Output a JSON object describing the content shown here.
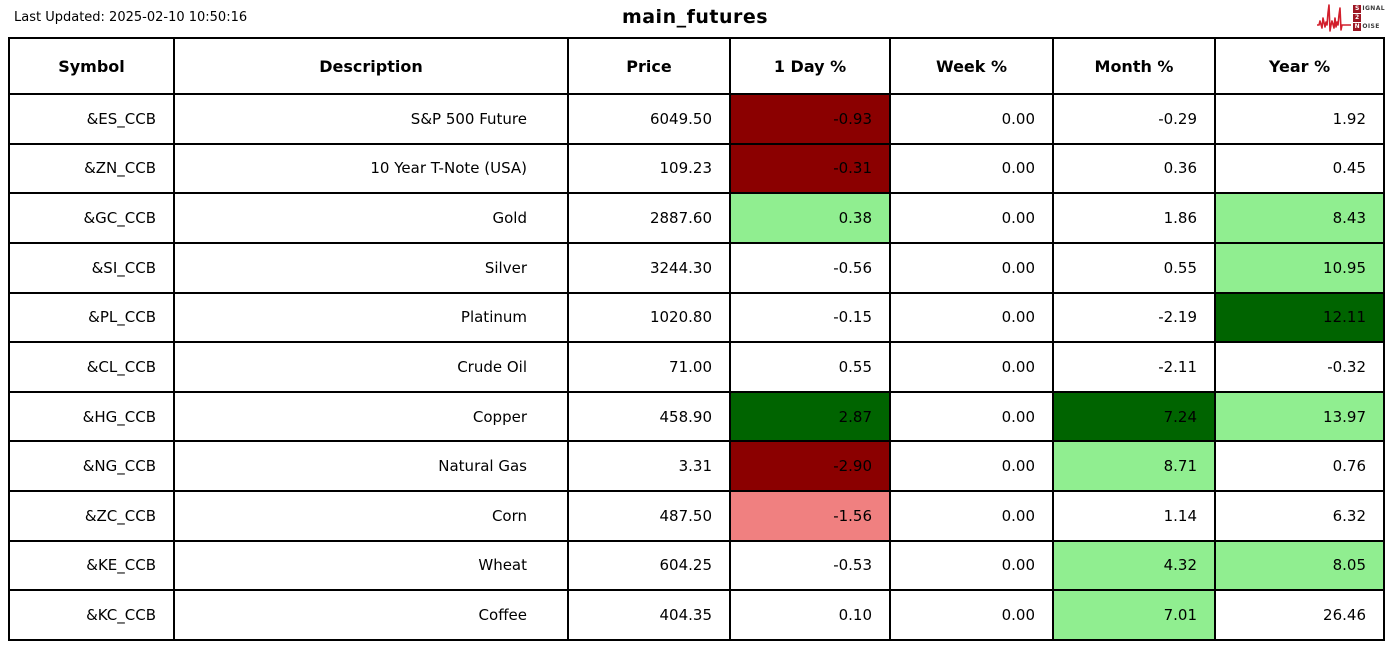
{
  "header": {
    "last_updated": "Last Updated: 2025-02-10 10:50:16",
    "title": "main_futures",
    "logo": {
      "line1_initial": "S",
      "line1_rest": "IGNAL",
      "line2": "2",
      "line3_initial": "N",
      "line3_rest": "OISE",
      "waveform_color": "#d21f2c",
      "square_color": "#9d1623"
    }
  },
  "colors": {
    "darkred": "#8b0000",
    "lightcoral": "#f08080",
    "lightgreen": "#90ee90",
    "darkgreen": "#006400",
    "white": "#ffffff"
  },
  "chart_data": {
    "type": "table",
    "title": "main_futures",
    "columns": [
      "Symbol",
      "Description",
      "Price",
      "1 Day %",
      "Week %",
      "Month %",
      "Year %"
    ],
    "column_keys": [
      "symbol",
      "description",
      "price",
      "day-pct",
      "week-pct",
      "month-pct",
      "year-pct"
    ],
    "rows": [
      {
        "cells": [
          "&ES_CCB",
          "S&P 500 Future",
          "6049.50",
          "-0.93",
          "0.00",
          "-0.29",
          "1.92"
        ],
        "bg": [
          "",
          "",
          "",
          "darkred",
          "",
          "",
          ""
        ]
      },
      {
        "cells": [
          "&ZN_CCB",
          "10 Year T-Note (USA)",
          "109.23",
          "-0.31",
          "0.00",
          "0.36",
          "0.45"
        ],
        "bg": [
          "",
          "",
          "",
          "darkred",
          "",
          "",
          ""
        ]
      },
      {
        "cells": [
          "&GC_CCB",
          "Gold",
          "2887.60",
          "0.38",
          "0.00",
          "1.86",
          "8.43"
        ],
        "bg": [
          "",
          "",
          "",
          "lightgreen",
          "",
          "",
          "lightgreen"
        ]
      },
      {
        "cells": [
          "&SI_CCB",
          "Silver",
          "3244.30",
          "-0.56",
          "0.00",
          "0.55",
          "10.95"
        ],
        "bg": [
          "",
          "",
          "",
          "",
          "",
          "",
          "lightgreen"
        ]
      },
      {
        "cells": [
          "&PL_CCB",
          "Platinum",
          "1020.80",
          "-0.15",
          "0.00",
          "-2.19",
          "12.11"
        ],
        "bg": [
          "",
          "",
          "",
          "",
          "",
          "",
          "darkgreen"
        ]
      },
      {
        "cells": [
          "&CL_CCB",
          "Crude Oil",
          "71.00",
          "0.55",
          "0.00",
          "-2.11",
          "-0.32"
        ],
        "bg": [
          "",
          "",
          "",
          "",
          "",
          "",
          ""
        ]
      },
      {
        "cells": [
          "&HG_CCB",
          "Copper",
          "458.90",
          "2.87",
          "0.00",
          "7.24",
          "13.97"
        ],
        "bg": [
          "",
          "",
          "",
          "darkgreen",
          "",
          "darkgreen",
          "lightgreen"
        ]
      },
      {
        "cells": [
          "&NG_CCB",
          "Natural Gas",
          "3.31",
          "-2.90",
          "0.00",
          "8.71",
          "0.76"
        ],
        "bg": [
          "",
          "",
          "",
          "darkred",
          "",
          "lightgreen",
          ""
        ]
      },
      {
        "cells": [
          "&ZC_CCB",
          "Corn",
          "487.50",
          "-1.56",
          "0.00",
          "1.14",
          "6.32"
        ],
        "bg": [
          "",
          "",
          "",
          "lightcoral",
          "",
          "",
          ""
        ]
      },
      {
        "cells": [
          "&KE_CCB",
          "Wheat",
          "604.25",
          "-0.53",
          "0.00",
          "4.32",
          "8.05"
        ],
        "bg": [
          "",
          "",
          "",
          "",
          "",
          "lightgreen",
          "lightgreen"
        ]
      },
      {
        "cells": [
          "&KC_CCB",
          "Coffee",
          "404.35",
          "0.10",
          "0.00",
          "7.01",
          "26.46"
        ],
        "bg": [
          "",
          "",
          "",
          "",
          "",
          "lightgreen",
          ""
        ]
      }
    ]
  }
}
